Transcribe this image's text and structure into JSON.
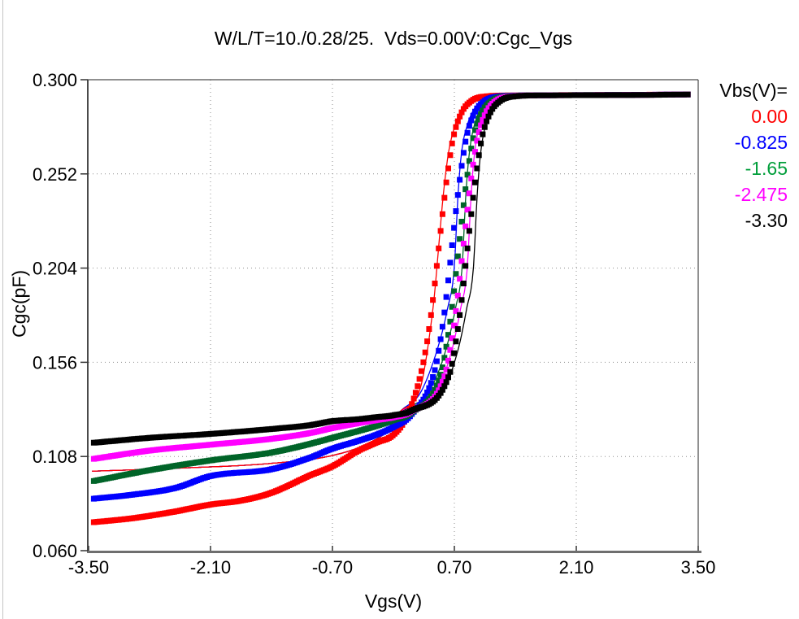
{
  "window": {
    "background": "#ffffff",
    "left_edge_color": "#c4c4c4"
  },
  "chart_data": {
    "type": "line",
    "title": "W/L/T=10./0.28/25.  Vds=0.00V:0:Cgc_Vgs",
    "xlabel": "Vgs(V)",
    "ylabel": "Cgc(pF)",
    "xlim": [
      -3.5,
      3.5
    ],
    "ylim": [
      0.06,
      0.3
    ],
    "xticks": [
      {
        "v": -3.5,
        "label": "-3.50"
      },
      {
        "v": -2.1,
        "label": "-2.10"
      },
      {
        "v": -0.7,
        "label": "-0.70"
      },
      {
        "v": 0.7,
        "label": "0.70"
      },
      {
        "v": 2.1,
        "label": "2.10"
      },
      {
        "v": 3.5,
        "label": "3.50"
      }
    ],
    "yticks": [
      {
        "v": 0.06,
        "label": "0.060"
      },
      {
        "v": 0.108,
        "label": "0.108"
      },
      {
        "v": 0.156,
        "label": "0.156"
      },
      {
        "v": 0.204,
        "label": "0.204"
      },
      {
        "v": 0.252,
        "label": "0.252"
      },
      {
        "v": 0.3,
        "label": "0.300"
      }
    ],
    "grid": {
      "style": "dotted",
      "color": "#8f8f8f",
      "x_gridlines": [
        -2.1,
        -0.7,
        0.7,
        2.1
      ],
      "y_gridlines": [
        0.108,
        0.156,
        0.204,
        0.252
      ]
    },
    "legend": {
      "title": "Vbs(V)=",
      "position": "top-right"
    },
    "marker_step_V": 0.022,
    "marker_size_px": 7,
    "saturation_pF": 0.2925,
    "series": [
      {
        "name": "0.00",
        "color": "#ff0000",
        "legend_color": "#ff0000",
        "marker": "filled-square",
        "points": [
          [
            -3.44,
            0.0745
          ],
          [
            -3.0,
            0.0765
          ],
          [
            -2.5,
            0.08
          ],
          [
            -2.1,
            0.0835
          ],
          [
            -1.75,
            0.0855
          ],
          [
            -1.4,
            0.0895
          ],
          [
            -0.95,
            0.0985
          ],
          [
            -0.7,
            0.103
          ],
          [
            -0.4,
            0.111
          ],
          [
            -0.2,
            0.115
          ],
          [
            0.0,
            0.119
          ],
          [
            0.15,
            0.128
          ],
          [
            0.314,
            0.15
          ],
          [
            0.4,
            0.17
          ],
          [
            0.46,
            0.19
          ],
          [
            0.51,
            0.21
          ],
          [
            0.56,
            0.23
          ],
          [
            0.615,
            0.25
          ],
          [
            0.685,
            0.27
          ],
          [
            0.78,
            0.283
          ],
          [
            0.89,
            0.289
          ],
          [
            1.06,
            0.2915
          ],
          [
            1.35,
            0.292
          ],
          [
            2.4,
            0.2922
          ],
          [
            3.4,
            0.2925
          ]
        ]
      },
      {
        "name": "-0.825",
        "color": "#0000ff",
        "legend_color": "#0000ff",
        "marker": "filled-square",
        "points": [
          [
            -3.44,
            0.0865
          ],
          [
            -3.0,
            0.0885
          ],
          [
            -2.5,
            0.092
          ],
          [
            -2.1,
            0.098
          ],
          [
            -1.4,
            0.1015
          ],
          [
            -0.95,
            0.1075
          ],
          [
            -0.7,
            0.112
          ],
          [
            -0.4,
            0.116
          ],
          [
            -0.2,
            0.119
          ],
          [
            0.0,
            0.123
          ],
          [
            0.2,
            0.129
          ],
          [
            0.464,
            0.15
          ],
          [
            0.55,
            0.17
          ],
          [
            0.61,
            0.19
          ],
          [
            0.66,
            0.21
          ],
          [
            0.71,
            0.23
          ],
          [
            0.765,
            0.25
          ],
          [
            0.835,
            0.27
          ],
          [
            0.93,
            0.283
          ],
          [
            1.04,
            0.289
          ],
          [
            1.21,
            0.2915
          ],
          [
            1.5,
            0.292
          ],
          [
            2.5,
            0.2922
          ],
          [
            3.4,
            0.2925
          ]
        ]
      },
      {
        "name": "-1.65",
        "color": "#006428",
        "legend_color": "#009e3a",
        "marker": "filled-square",
        "points": [
          [
            -3.44,
            0.0955
          ],
          [
            -2.8,
            0.101
          ],
          [
            -2.1,
            0.106
          ],
          [
            -1.4,
            0.11
          ],
          [
            -0.95,
            0.1145
          ],
          [
            -0.7,
            0.1175
          ],
          [
            -0.4,
            0.121
          ],
          [
            -0.2,
            0.1235
          ],
          [
            0.0,
            0.1265
          ],
          [
            0.2,
            0.13
          ],
          [
            0.544,
            0.15
          ],
          [
            0.63,
            0.17
          ],
          [
            0.69,
            0.19
          ],
          [
            0.74,
            0.21
          ],
          [
            0.79,
            0.23
          ],
          [
            0.845,
            0.25
          ],
          [
            0.915,
            0.27
          ],
          [
            1.01,
            0.283
          ],
          [
            1.12,
            0.289
          ],
          [
            1.29,
            0.2915
          ],
          [
            1.58,
            0.292
          ],
          [
            2.6,
            0.2922
          ],
          [
            3.4,
            0.2925
          ]
        ]
      },
      {
        "name": "-2.475",
        "color": "#ff00ff",
        "legend_color": "#ff00ff",
        "marker": "filled-square",
        "points": [
          [
            -3.44,
            0.1068
          ],
          [
            -2.8,
            0.111
          ],
          [
            -2.1,
            0.114
          ],
          [
            -1.4,
            0.117
          ],
          [
            -0.95,
            0.12
          ],
          [
            -0.7,
            0.1225
          ],
          [
            -0.4,
            0.125
          ],
          [
            -0.2,
            0.1265
          ],
          [
            0.0,
            0.128
          ],
          [
            0.2,
            0.1308
          ],
          [
            0.594,
            0.15
          ],
          [
            0.68,
            0.17
          ],
          [
            0.74,
            0.19
          ],
          [
            0.79,
            0.21
          ],
          [
            0.84,
            0.23
          ],
          [
            0.895,
            0.25
          ],
          [
            0.965,
            0.27
          ],
          [
            1.06,
            0.283
          ],
          [
            1.17,
            0.289
          ],
          [
            1.34,
            0.2915
          ],
          [
            1.63,
            0.292
          ],
          [
            2.7,
            0.2922
          ],
          [
            3.4,
            0.2925
          ]
        ]
      },
      {
        "name": "-3.30",
        "color": "#000000",
        "legend_color": "#000000",
        "marker": "filled-square",
        "points": [
          [
            -3.44,
            0.115
          ],
          [
            -2.8,
            0.1175
          ],
          [
            -2.1,
            0.1195
          ],
          [
            -1.4,
            0.122
          ],
          [
            -0.95,
            0.124
          ],
          [
            -0.7,
            0.126
          ],
          [
            -0.4,
            0.127
          ],
          [
            -0.2,
            0.128
          ],
          [
            0.0,
            0.129
          ],
          [
            0.2,
            0.1312
          ],
          [
            0.644,
            0.15
          ],
          [
            0.73,
            0.17
          ],
          [
            0.79,
            0.19
          ],
          [
            0.84,
            0.21
          ],
          [
            0.89,
            0.23
          ],
          [
            0.945,
            0.25
          ],
          [
            1.015,
            0.27
          ],
          [
            1.11,
            0.283
          ],
          [
            1.22,
            0.289
          ],
          [
            1.39,
            0.2915
          ],
          [
            1.68,
            0.292
          ],
          [
            2.8,
            0.2922
          ],
          [
            3.4,
            0.2925
          ]
        ]
      }
    ],
    "model_lines": [
      {
        "name": "0.00 model",
        "color": "#ff0000",
        "points": [
          [
            -3.46,
            0.1005
          ],
          [
            -2.5,
            0.102
          ],
          [
            -1.4,
            0.1045
          ],
          [
            -0.7,
            0.1085
          ],
          [
            -0.3,
            0.1145
          ],
          [
            -0.05,
            0.122
          ],
          [
            0.06,
            0.13
          ],
          [
            0.31,
            0.143
          ],
          [
            0.4,
            0.165
          ],
          [
            0.47,
            0.19
          ],
          [
            0.52,
            0.215
          ],
          [
            0.57,
            0.24
          ],
          [
            0.63,
            0.262
          ],
          [
            0.71,
            0.277
          ],
          [
            0.82,
            0.2865
          ],
          [
            0.98,
            0.29
          ],
          [
            1.25,
            0.2915
          ],
          [
            3.42,
            0.292
          ]
        ]
      },
      {
        "name": "-0.825 model",
        "color": "#0000ff",
        "points": [
          [
            -3.46,
            0.1005
          ],
          [
            -2.5,
            0.102
          ],
          [
            -1.4,
            0.1045
          ],
          [
            -0.7,
            0.1085
          ],
          [
            -0.3,
            0.1145
          ],
          [
            -0.05,
            0.122
          ],
          [
            0.06,
            0.13
          ],
          [
            0.31,
            0.1405
          ],
          [
            0.5,
            0.162
          ],
          [
            0.62,
            0.183
          ],
          [
            0.7,
            0.205
          ],
          [
            0.74,
            0.24
          ],
          [
            0.78,
            0.262
          ],
          [
            0.85,
            0.277
          ],
          [
            0.95,
            0.2865
          ],
          [
            1.1,
            0.29
          ],
          [
            1.35,
            0.2915
          ],
          [
            3.42,
            0.292
          ]
        ]
      },
      {
        "name": "-1.65 model",
        "color": "#006428",
        "points": [
          [
            -3.46,
            0.1005
          ],
          [
            -2.5,
            0.102
          ],
          [
            -1.4,
            0.1045
          ],
          [
            -0.7,
            0.1085
          ],
          [
            -0.3,
            0.1145
          ],
          [
            -0.05,
            0.122
          ],
          [
            0.06,
            0.13
          ],
          [
            0.4,
            0.1405
          ],
          [
            0.6,
            0.162
          ],
          [
            0.71,
            0.183
          ],
          [
            0.79,
            0.205
          ],
          [
            0.83,
            0.24
          ],
          [
            0.87,
            0.262
          ],
          [
            0.93,
            0.277
          ],
          [
            1.03,
            0.2865
          ],
          [
            1.17,
            0.29
          ],
          [
            1.42,
            0.2915
          ],
          [
            3.42,
            0.292
          ]
        ]
      },
      {
        "name": "-2.475 model",
        "color": "#ff00ff",
        "points": [
          [
            -3.46,
            0.1005
          ],
          [
            -2.5,
            0.102
          ],
          [
            -1.4,
            0.1045
          ],
          [
            -0.7,
            0.1085
          ],
          [
            -0.3,
            0.1145
          ],
          [
            -0.05,
            0.122
          ],
          [
            0.06,
            0.13
          ],
          [
            0.48,
            0.1405
          ],
          [
            0.67,
            0.162
          ],
          [
            0.77,
            0.183
          ],
          [
            0.85,
            0.205
          ],
          [
            0.89,
            0.24
          ],
          [
            0.93,
            0.262
          ],
          [
            0.99,
            0.277
          ],
          [
            1.08,
            0.2865
          ],
          [
            1.22,
            0.29
          ],
          [
            1.47,
            0.2915
          ],
          [
            3.42,
            0.292
          ]
        ]
      },
      {
        "name": "-3.30 model",
        "color": "#000000",
        "points": [
          [
            -3.46,
            0.1005
          ],
          [
            -2.5,
            0.102
          ],
          [
            -1.4,
            0.1045
          ],
          [
            -0.7,
            0.1085
          ],
          [
            -0.3,
            0.1145
          ],
          [
            -0.05,
            0.122
          ],
          [
            0.06,
            0.13
          ],
          [
            0.55,
            0.1405
          ],
          [
            0.74,
            0.162
          ],
          [
            0.84,
            0.183
          ],
          [
            0.92,
            0.205
          ],
          [
            0.96,
            0.24
          ],
          [
            1.0,
            0.262
          ],
          [
            1.06,
            0.277
          ],
          [
            1.15,
            0.2865
          ],
          [
            1.29,
            0.29
          ],
          [
            1.54,
            0.2915
          ],
          [
            3.42,
            0.292
          ]
        ]
      }
    ]
  }
}
